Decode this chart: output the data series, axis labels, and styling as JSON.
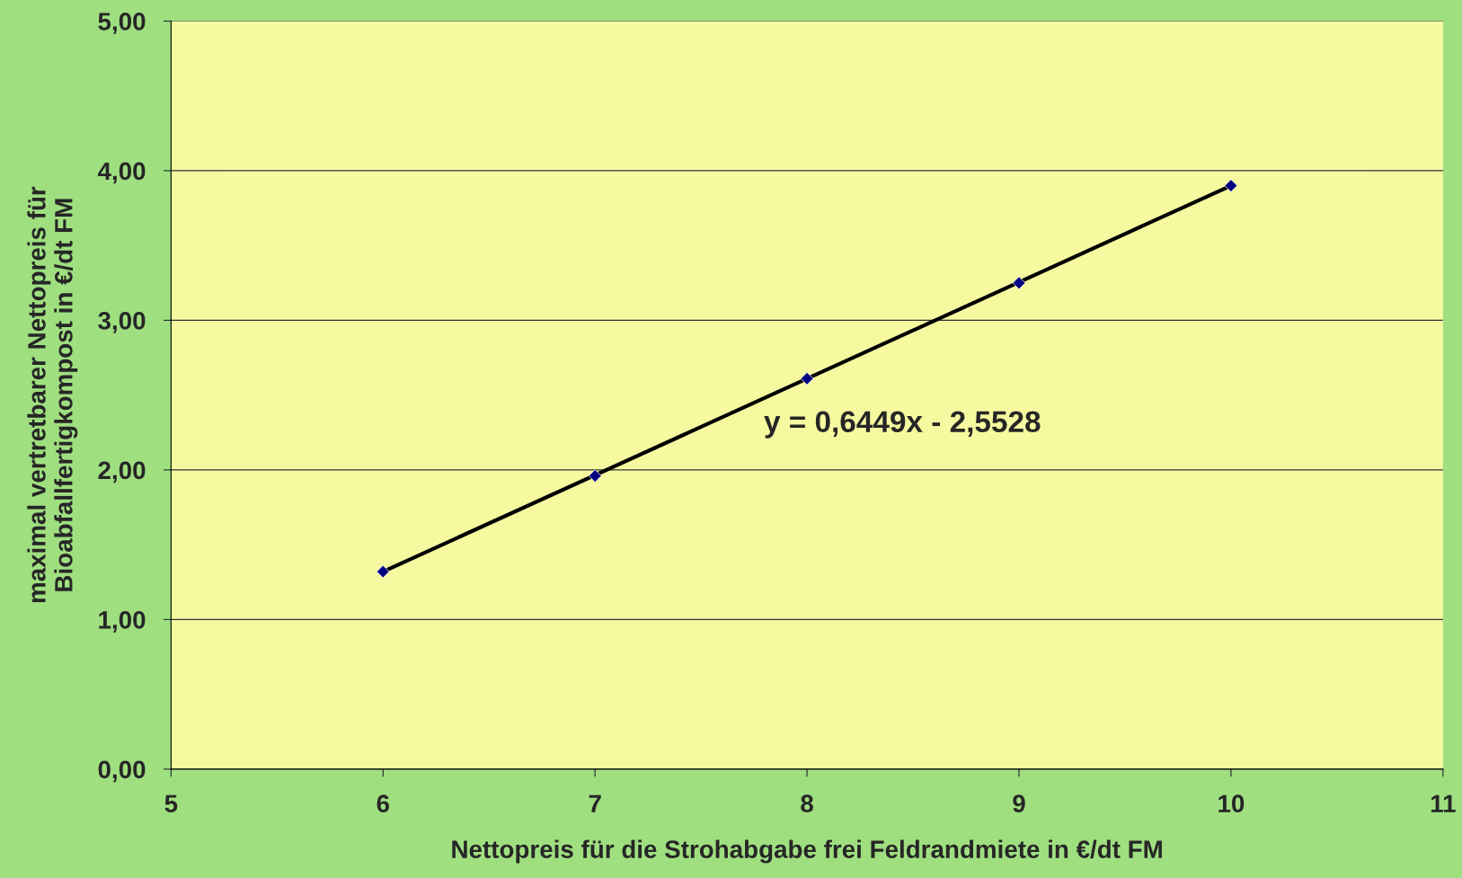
{
  "chart_data": {
    "type": "scatter",
    "xlabel": "Nettopreis für die Strohabgabe frei Feldrandmiete in €/dt FM",
    "ylabel": "maximal vertretbarer Nettopreis für\nBioabfallfertigkompost in €/dt FM",
    "series": [
      {
        "type": "line",
        "color": "#000000",
        "x": [
          6,
          10
        ],
        "values": [
          1.32,
          3.9
        ],
        "marker": "none",
        "line_style": "solid"
      },
      {
        "color": "#000080",
        "x": [
          6,
          7,
          8,
          9,
          10
        ],
        "values": [
          1.32,
          1.96,
          2.61,
          3.25,
          3.9
        ],
        "marker": "diamond"
      }
    ],
    "annotations": [
      "y = 0,6449x - 2,5528"
    ],
    "xlim": [
      5,
      11
    ],
    "xticks": [
      5,
      6,
      7,
      8,
      9,
      10,
      11
    ],
    "ylim": [
      0,
      5
    ],
    "yticks": [
      {
        "value": 0,
        "label": "0,00"
      },
      {
        "value": 1,
        "label": "1,00"
      },
      {
        "value": 2,
        "label": "2,00"
      },
      {
        "value": 3,
        "label": "3,00"
      },
      {
        "value": 4,
        "label": "4,00"
      },
      {
        "value": 5,
        "label": "5,00"
      }
    ],
    "grid": "y",
    "legend": false
  }
}
